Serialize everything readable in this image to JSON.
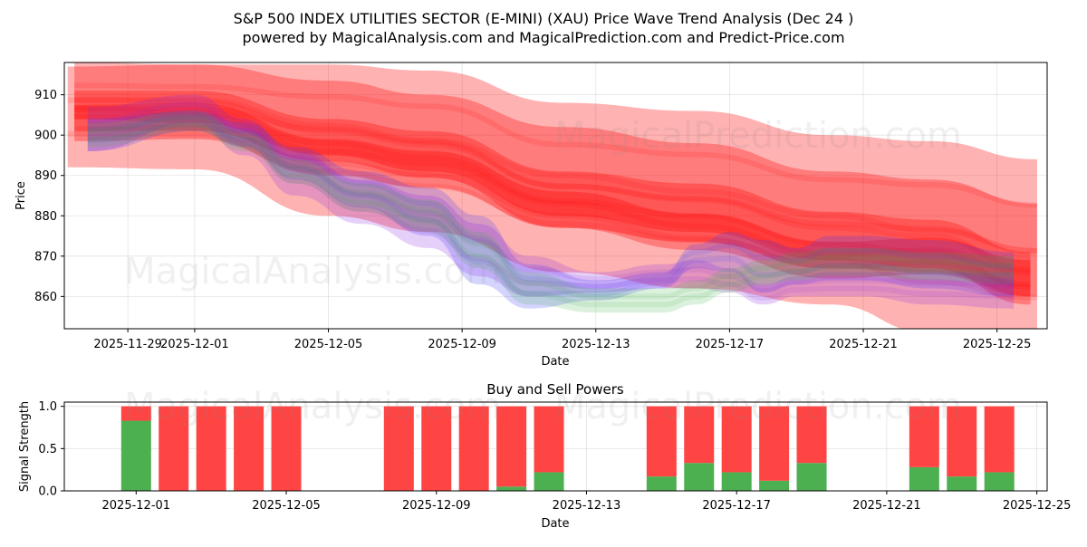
{
  "chart_data": [
    {
      "type": "area",
      "title": "S&P 500 INDEX UTILITIES SECTOR (E-MINI) (XAU) Price Wave Trend Analysis (Dec 24 )",
      "subtitle": "powered by MagicalAnalysis.com and MagicalPrediction.com and Predict-Price.com",
      "xlabel": "Date",
      "ylabel": "Price",
      "x_ticks": [
        "2025-11-29",
        "2025-12-01",
        "2025-12-05",
        "2025-12-09",
        "2025-12-13",
        "2025-12-17",
        "2025-12-21",
        "2025-12-25"
      ],
      "y_ticks": [
        860,
        870,
        880,
        890,
        900,
        910
      ],
      "xlim": [
        -3.9,
        25.5
      ],
      "ylim": [
        852,
        918
      ],
      "grid": true,
      "bands": [
        {
          "name": "red-outer",
          "color": "#ff0000",
          "opacity": 0.3,
          "x": [
            -3.8,
            0,
            4,
            7,
            11,
            15,
            19,
            22,
            25.2
          ],
          "upper": [
            917,
            917.5,
            913.5,
            910,
            902,
            898,
            891,
            889,
            883
          ],
          "lower": [
            892,
            891.5,
            880,
            876,
            866,
            862,
            858,
            851,
            848
          ]
        },
        {
          "name": "red-mid",
          "color": "#ff0000",
          "opacity": 0.3,
          "x": [
            -3.6,
            0,
            4,
            7,
            11,
            15,
            19,
            22,
            25.2
          ],
          "upper": [
            918,
            917.5,
            917.5,
            916,
            908,
            906,
            900,
            898.5,
            894
          ],
          "lower": [
            901,
            901,
            893.5,
            889.5,
            877,
            873.5,
            867,
            866,
            860
          ]
        },
        {
          "name": "red-inner",
          "color": "#ff0000",
          "opacity": 0.3,
          "x": [
            -3.6,
            0,
            4,
            7,
            11,
            15,
            19,
            22,
            25
          ],
          "upper": [
            907.5,
            908,
            899,
            896,
            886,
            880.5,
            873.5,
            874.5,
            869
          ]
        },
        {
          "name": "red-lower-trend",
          "color": "#ff0000",
          "opacity": 0.3,
          "x": [
            -3.6,
            0,
            4,
            7,
            11,
            15,
            19,
            22,
            25
          ],
          "upper": [
            911,
            911,
            904,
            901,
            891,
            888,
            881,
            879,
            871
          ],
          "lower": [
            904,
            903,
            895,
            891,
            880,
            876,
            869,
            867,
            858
          ]
        },
        {
          "name": "blue-waves",
          "color": "#3a3aff",
          "opacity": 0.22,
          "x": [
            -3.2,
            0,
            1.5,
            3,
            5,
            7,
            8.5,
            10,
            12,
            14,
            15,
            16,
            17,
            18,
            19,
            20,
            22,
            24.5
          ],
          "upper": [
            904,
            906,
            903,
            897,
            891,
            887,
            880,
            868,
            864,
            866,
            873,
            876,
            874,
            872,
            875,
            875,
            874,
            871
          ],
          "lower": [
            896,
            901,
            897,
            889,
            882,
            875,
            863,
            857,
            859,
            862,
            867,
            866,
            861,
            863,
            864,
            864,
            862,
            860
          ]
        },
        {
          "name": "purple-waves",
          "color": "#8a2be2",
          "opacity": 0.22,
          "x": [
            -3.2,
            0,
            1.5,
            3,
            5,
            7,
            8.5,
            10,
            12,
            14,
            15,
            16,
            17,
            18,
            19,
            20,
            22,
            24.5
          ],
          "upper": [
            907,
            910,
            904,
            896,
            889,
            885,
            878,
            870,
            866,
            868,
            869,
            867,
            863,
            865,
            866,
            866,
            866,
            866
          ],
          "lower": [
            896,
            903,
            895,
            885,
            878,
            872,
            865,
            860,
            861,
            862,
            862,
            861,
            858,
            860,
            860,
            860,
            858,
            857
          ]
        },
        {
          "name": "green-waves",
          "color": "#3cb043",
          "opacity": 0.18,
          "x": [
            -3.2,
            0,
            1.5,
            3,
            5,
            7,
            8.5,
            10,
            12,
            14,
            15,
            16,
            17,
            18,
            19,
            20,
            22,
            24.5
          ],
          "upper": [
            903,
            906,
            901,
            894,
            888,
            884,
            876,
            866,
            862,
            862,
            864,
            867,
            869,
            871,
            872,
            872,
            871,
            870
          ],
          "lower": [
            897,
            901,
            896,
            888,
            881,
            876,
            867,
            858,
            856,
            856,
            858,
            861,
            863,
            864,
            865,
            865,
            864,
            863
          ]
        }
      ],
      "watermarks": [
        "MagicalAnalysis.com",
        "MagicalPrediction.com"
      ]
    },
    {
      "type": "bar",
      "title": "Buy and Sell Powers",
      "xlabel": "Date",
      "ylabel": "Signal Strength",
      "x_ticks": [
        "2025-12-01",
        "2025-12-05",
        "2025-12-09",
        "2025-12-13",
        "2025-12-17",
        "2025-12-21",
        "2025-12-25"
      ],
      "y_ticks": [
        0.0,
        0.5,
        1.0
      ],
      "ylim": [
        0,
        1.05
      ],
      "grid": true,
      "series": [
        {
          "name": "Buy",
          "color": "#4caf50",
          "x": [
            0,
            1,
            2,
            3,
            4,
            7,
            8,
            9,
            10,
            11,
            14,
            15,
            16,
            17,
            18,
            21,
            22,
            23
          ],
          "values": [
            0.83,
            0,
            0,
            0,
            0,
            0,
            0,
            0,
            0.05,
            0.22,
            0.17,
            0.33,
            0.22,
            0.12,
            0.33,
            0.28,
            0.17,
            0.22
          ]
        },
        {
          "name": "Sell",
          "color": "#ff4444",
          "x": [
            0,
            1,
            2,
            3,
            4,
            7,
            8,
            9,
            10,
            11,
            14,
            15,
            16,
            17,
            18,
            21,
            22,
            23
          ],
          "values": [
            0.17,
            1.0,
            1.0,
            1.0,
            1.0,
            1.0,
            1.0,
            1.0,
            0.95,
            0.78,
            0.83,
            0.67,
            0.78,
            0.88,
            0.67,
            0.72,
            0.83,
            0.78
          ]
        }
      ],
      "watermarks": [
        "MagicalAnalysis.com",
        "MagicalPrediction.com"
      ]
    }
  ]
}
